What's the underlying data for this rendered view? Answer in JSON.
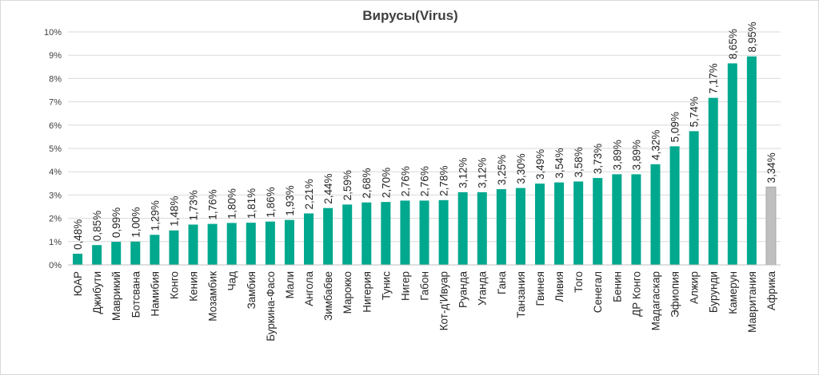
{
  "chart_data": {
    "type": "bar",
    "title": "Вирусы(Virus)",
    "xlabel": "",
    "ylabel": "",
    "ylim": [
      0,
      10
    ],
    "yticks": [
      "0%",
      "1%",
      "2%",
      "3%",
      "4%",
      "5%",
      "6%",
      "7%",
      "8%",
      "9%",
      "10%"
    ],
    "grid": true,
    "legend": "none",
    "bar_color": "#00a88e",
    "highlight_color": "#bfbfbf",
    "categories": [
      "ЮАР",
      "Джибути",
      "Маврикий",
      "Ботсвана",
      "Намибия",
      "Конго",
      "Кения",
      "Мозамбик",
      "Чад",
      "Замбия",
      "Буркина-Фасо",
      "Мали",
      "Ангола",
      "Зимбабве",
      "Марокко",
      "Нигерия",
      "Тунис",
      "Нигер",
      "Габон",
      "Кот-д'Ивуар",
      "Руанда",
      "Уганда",
      "Гана",
      "Танзания",
      "Гвинея",
      "Ливия",
      "Того",
      "Сенегал",
      "Бенин",
      "ДР Конго",
      "Мадагаскар",
      "Эфиопия",
      "Алжир",
      "Бурунди",
      "Камерун",
      "Мавритания",
      "Африка"
    ],
    "values": [
      0.48,
      0.85,
      0.99,
      1.0,
      1.29,
      1.48,
      1.73,
      1.76,
      1.8,
      1.81,
      1.86,
      1.93,
      2.21,
      2.44,
      2.59,
      2.68,
      2.7,
      2.76,
      2.76,
      2.78,
      3.12,
      3.12,
      3.25,
      3.3,
      3.49,
      3.54,
      3.58,
      3.73,
      3.89,
      3.89,
      4.32,
      5.09,
      5.74,
      7.17,
      8.65,
      8.95,
      3.34
    ],
    "labels": [
      "0,48%",
      "0,85%",
      "0,99%",
      "1,00%",
      "1,29%",
      "1,48%",
      "1,73%",
      "1,76%",
      "1,80%",
      "1,81%",
      "1,86%",
      "1,93%",
      "2,21%",
      "2,44%",
      "2,59%",
      "2,68%",
      "2,70%",
      "2,76%",
      "2,76%",
      "2,78%",
      "3,12%",
      "3,12%",
      "3,25%",
      "3,30%",
      "3,49%",
      "3,54%",
      "3,58%",
      "3,73%",
      "3,89%",
      "3,89%",
      "4,32%",
      "5,09%",
      "5,74%",
      "7,17%",
      "8,65%",
      "8,95%",
      "3,34%"
    ],
    "highlight_category": "Африка"
  }
}
